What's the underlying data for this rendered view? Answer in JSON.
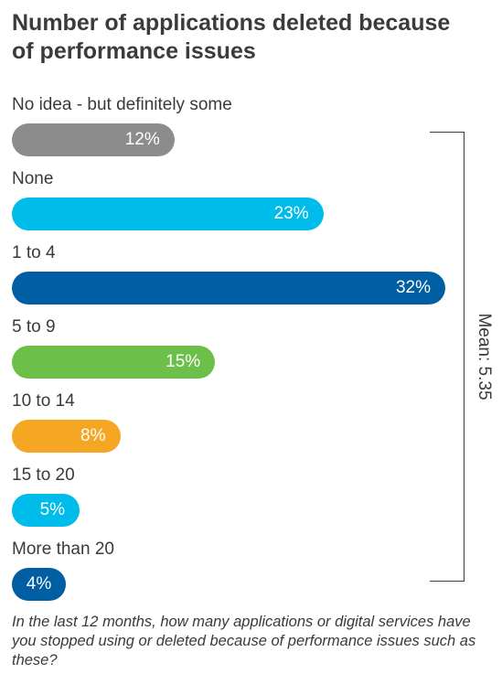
{
  "chart_data": {
    "type": "bar",
    "orientation": "horizontal",
    "title": "Number of applications deleted because of performance issues",
    "categories": [
      "No idea - but definitely some",
      "None",
      "1 to 4",
      "5 to 9",
      "10 to 14",
      "15 to 20",
      "More than 20"
    ],
    "values": [
      12,
      23,
      32,
      15,
      8,
      5,
      4
    ],
    "value_labels": [
      "12%",
      "23%",
      "32%",
      "15%",
      "8%",
      "5%",
      "4%"
    ],
    "unit": "%",
    "colors": [
      "#8c8c8c",
      "#00bceb",
      "#005ea2",
      "#6cc04a",
      "#f5a623",
      "#00bceb",
      "#005ea2"
    ],
    "annotation": "Mean: 5.35",
    "footnote": "In the last 12 months, how many applications or digital services have you stopped using or deleted because of performance issues such as these?",
    "xlim": [
      0,
      32
    ]
  }
}
